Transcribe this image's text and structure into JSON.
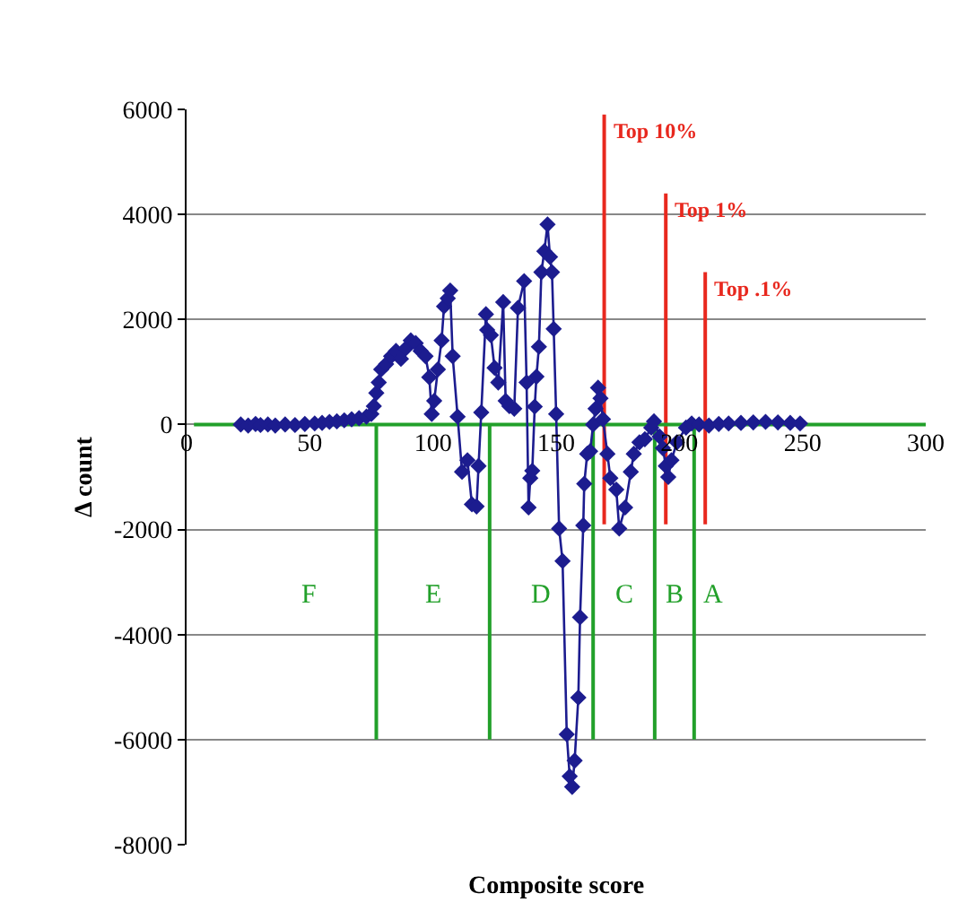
{
  "chart_data": {
    "type": "line",
    "xlabel": "Composite score",
    "ylabel": "Δ count",
    "xlim": [
      0,
      300
    ],
    "xticks": [
      0,
      50,
      100,
      150,
      200,
      250,
      300
    ],
    "ylim": [
      -8000,
      6000
    ],
    "yticks": [
      -8000,
      -6000,
      -4000,
      -2000,
      0,
      2000,
      4000,
      6000
    ],
    "grid": "y",
    "legend": false,
    "marker": "diamond",
    "line_style": "solid",
    "series": [
      {
        "color": "#1c1c8f",
        "x": [
          22,
          25,
          28,
          30,
          33,
          36,
          40,
          44,
          48,
          52,
          55,
          58,
          61,
          64,
          67,
          70,
          73,
          75,
          76,
          77,
          78,
          79,
          81,
          83,
          85,
          87,
          89,
          91,
          93,
          95,
          97,
          98.5,
          99.5,
          100.5,
          102,
          103.5,
          104.5,
          106,
          107,
          108,
          110,
          111.8,
          114,
          115.8,
          117.7,
          118.5,
          119.6,
          121.5,
          122,
          123.5,
          125,
          126.5,
          128.5,
          129.5,
          131,
          133,
          134.5,
          137,
          138,
          138.8,
          139.5,
          140.3,
          141.3,
          142,
          143,
          144,
          145.2,
          146.5,
          147.5,
          148.3,
          149,
          150,
          151.2,
          152.6,
          154.3,
          155.5,
          156.5,
          157.5,
          159,
          159.7,
          161,
          161.4,
          162.6,
          163.8,
          165,
          166,
          167,
          168,
          169,
          170.8,
          172,
          174.4,
          175.6,
          178,
          180.3,
          181.5,
          183.8,
          186,
          188.6,
          189.7,
          192,
          193.3,
          194.5,
          195.5,
          196.8,
          199,
          202.7,
          205,
          208,
          212,
          216,
          220,
          225,
          230,
          235,
          240,
          245,
          249
        ],
        "values": [
          0,
          -20,
          10,
          -10,
          0,
          -20,
          0,
          -10,
          10,
          20,
          30,
          50,
          60,
          80,
          100,
          120,
          150,
          200,
          350,
          600,
          800,
          1050,
          1150,
          1300,
          1400,
          1250,
          1450,
          1600,
          1550,
          1400,
          1300,
          900,
          200,
          450,
          1050,
          1600,
          2250,
          2400,
          2550,
          1300,
          150,
          -900,
          -680,
          -1520,
          -1560,
          -790,
          230,
          2100,
          1800,
          1700,
          1080,
          800,
          2330,
          450,
          350,
          300,
          2220,
          2730,
          800,
          -1580,
          -1020,
          -880,
          340,
          910,
          1480,
          2900,
          3300,
          3810,
          3190,
          2900,
          1820,
          200,
          -1980,
          -2600,
          -5900,
          -6700,
          -6900,
          -6400,
          -5200,
          -3670,
          -1920,
          -1130,
          -560,
          -510,
          0,
          300,
          700,
          500,
          100,
          -560,
          -1020,
          -1240,
          -1980,
          -1580,
          -900,
          -560,
          -340,
          -280,
          -60,
          60,
          -230,
          -450,
          -790,
          -1000,
          -680,
          -340,
          -60,
          20,
          0,
          -20,
          10,
          20,
          30,
          40,
          50,
          40,
          30,
          20
        ]
      },
      {
        "name": "Top 10%",
        "color": "#e8281e",
        "type": "line",
        "marker": "none",
        "x": [
          169.5,
          169.5
        ],
        "values": [
          5900,
          -1900
        ]
      },
      {
        "name": "Top 1%",
        "color": "#e8281e",
        "type": "line",
        "marker": "none",
        "x": [
          194.5,
          194.5
        ],
        "values": [
          4400,
          -1900
        ]
      },
      {
        "name": "Top .1%",
        "color": "#e8281e",
        "type": "line",
        "marker": "none",
        "x": [
          210.5,
          210.5
        ],
        "values": [
          2900,
          -1900
        ]
      },
      {
        "color": "#22a02a",
        "type": "line",
        "marker": "none",
        "x": [
          3,
          300
        ],
        "values": [
          0,
          0
        ]
      },
      {
        "color": "#22a02a",
        "type": "line",
        "marker": "none",
        "x": [
          77,
          77
        ],
        "values": [
          0,
          -6000
        ]
      },
      {
        "color": "#22a02a",
        "type": "line",
        "marker": "none",
        "x": [
          123,
          123
        ],
        "values": [
          0,
          -6000
        ]
      },
      {
        "color": "#22a02a",
        "type": "line",
        "marker": "none",
        "x": [
          165,
          165
        ],
        "values": [
          0,
          -6000
        ]
      },
      {
        "color": "#22a02a",
        "type": "line",
        "marker": "none",
        "x": [
          190,
          190
        ],
        "values": [
          0,
          -6000
        ]
      },
      {
        "color": "#22a02a",
        "type": "line",
        "marker": "none",
        "x": [
          206,
          206
        ],
        "values": [
          0,
          -6000
        ]
      }
    ],
    "annotations": [
      "F",
      "E",
      "D",
      "C",
      "B",
      "A"
    ]
  }
}
